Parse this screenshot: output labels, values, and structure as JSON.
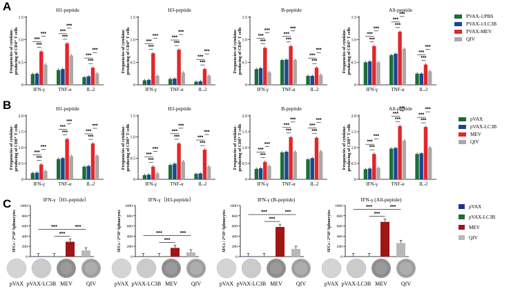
{
  "panels": {
    "A": {
      "letter": "A",
      "ylabel": [
        "Frequencies of cytokine-",
        "producing of CD4⁺ T cells"
      ],
      "legend": [
        "PVAX-1/PBS",
        "PVAX-1/LC3B",
        "PVAX-MEV",
        "QIV"
      ],
      "colors": [
        "#1a6e3a",
        "#1f4590",
        "#e3262a",
        "#a8a8a8"
      ]
    },
    "B": {
      "letter": "B",
      "ylabel": [
        "Frequencies of cytokine-",
        "producing of CD8⁺ T cells"
      ],
      "legend": [
        "pVAX",
        "pVAX-LC3B",
        "MEV",
        "QIV"
      ],
      "colors": [
        "#1a6e3a",
        "#1f4590",
        "#e3262a",
        "#a8a8a8"
      ]
    },
    "C": {
      "letter": "C",
      "ylabel": "SFCs / 2*10⁵ Splenocytes",
      "legend": [
        "pVAX",
        "pVAX-LC3B",
        "MEV",
        "QIV"
      ],
      "colors": [
        "#1f2f8f",
        "#1a6e3a",
        "#a01515",
        "#b8b8b8"
      ],
      "xlabels": [
        "pVAX",
        "pVAX-LC3B",
        "MEV",
        "QIV"
      ]
    }
  },
  "sig": "***",
  "chart_data": [
    {
      "type": "bar",
      "panel": "A",
      "title": "H1-peptide",
      "categories": [
        "IFN-γ",
        "TNF-α",
        "IL-2"
      ],
      "ylim": [
        0,
        1.5
      ],
      "yticks": [
        0,
        0.5,
        1.0,
        1.5
      ],
      "series": [
        {
          "name": "PVAX-1/PBS",
          "values": [
            0.24,
            0.33,
            0.17
          ]
        },
        {
          "name": "PVAX-1/LC3B",
          "values": [
            0.25,
            0.35,
            0.19
          ]
        },
        {
          "name": "PVAX-MEV",
          "values": [
            0.74,
            0.92,
            0.38
          ]
        },
        {
          "name": "QIV",
          "values": [
            0.45,
            0.65,
            0.25
          ]
        }
      ]
    },
    {
      "type": "bar",
      "panel": "A",
      "title": "H3-peptide",
      "categories": [
        "IFN-γ",
        "TNF-α",
        "IL-2"
      ],
      "ylim": [
        0,
        1.5
      ],
      "yticks": [
        0,
        0.5,
        1.0,
        1.5
      ],
      "series": [
        {
          "name": "PVAX-1/PBS",
          "values": [
            0.1,
            0.13,
            0.07
          ]
        },
        {
          "name": "PVAX-1/LC3B",
          "values": [
            0.11,
            0.14,
            0.08
          ]
        },
        {
          "name": "PVAX-MEV",
          "values": [
            0.7,
            0.78,
            0.35
          ]
        },
        {
          "name": "QIV",
          "values": [
            0.2,
            0.27,
            0.2
          ]
        }
      ]
    },
    {
      "type": "bar",
      "panel": "A",
      "title": "B-peptide",
      "categories": [
        "IFN-γ",
        "TNF-α",
        "IL-2"
      ],
      "ylim": [
        0,
        1.5
      ],
      "yticks": [
        0,
        0.5,
        1.0,
        1.5
      ],
      "series": [
        {
          "name": "PVAX-1/PBS",
          "values": [
            0.35,
            0.55,
            0.2
          ]
        },
        {
          "name": "PVAX-1/LC3B",
          "values": [
            0.37,
            0.56,
            0.2
          ]
        },
        {
          "name": "PVAX-MEV",
          "values": [
            0.82,
            0.86,
            0.38
          ]
        },
        {
          "name": "QIV",
          "values": [
            0.28,
            0.55,
            0.22
          ]
        }
      ]
    },
    {
      "type": "bar",
      "panel": "A",
      "title": "All-peptide",
      "categories": [
        "IFN-γ",
        "TNF-α",
        "IL-2"
      ],
      "ylim": [
        0,
        1.5
      ],
      "yticks": [
        0,
        0.5,
        1.0,
        1.5
      ],
      "series": [
        {
          "name": "PVAX-1/PBS",
          "values": [
            0.5,
            0.66,
            0.25
          ]
        },
        {
          "name": "PVAX-1/LC3B",
          "values": [
            0.52,
            0.69,
            0.25
          ]
        },
        {
          "name": "PVAX-MEV",
          "values": [
            0.86,
            1.18,
            0.45
          ]
        },
        {
          "name": "QIV",
          "values": [
            0.5,
            0.8,
            0.3
          ]
        }
      ]
    },
    {
      "type": "bar",
      "panel": "B",
      "title": "H1-peptide",
      "categories": [
        "IFN-γ",
        "TNF-α",
        "IL-2"
      ],
      "ylim": [
        0,
        2.0
      ],
      "yticks": [
        0,
        0.5,
        1.0,
        1.5,
        2.0
      ],
      "series": [
        {
          "name": "pVAX",
          "values": [
            0.2,
            0.64,
            0.4
          ]
        },
        {
          "name": "pVAX-LC3B",
          "values": [
            0.21,
            0.67,
            0.42
          ]
        },
        {
          "name": "MEV",
          "values": [
            0.47,
            1.27,
            1.13
          ]
        },
        {
          "name": "QIV",
          "values": [
            0.26,
            0.73,
            0.74
          ]
        }
      ]
    },
    {
      "type": "bar",
      "panel": "B",
      "title": "H3-peptide",
      "categories": [
        "IFN-γ",
        "TNF-α",
        "IL-2"
      ],
      "ylim": [
        0,
        1.5
      ],
      "yticks": [
        0,
        0.5,
        1.0,
        1.5
      ],
      "series": [
        {
          "name": "pVAX",
          "values": [
            0.1,
            0.34,
            0.13
          ]
        },
        {
          "name": "pVAX-LC3B",
          "values": [
            0.11,
            0.37,
            0.14
          ]
        },
        {
          "name": "MEV",
          "values": [
            0.3,
            0.85,
            0.7
          ]
        },
        {
          "name": "QIV",
          "values": [
            0.14,
            0.42,
            0.3
          ]
        }
      ]
    },
    {
      "type": "bar",
      "panel": "B",
      "title": "B-peptide",
      "categories": [
        "IFN-γ",
        "TNF-α",
        "IL-2"
      ],
      "ylim": [
        0,
        2.0
      ],
      "yticks": [
        0,
        0.5,
        1.0,
        1.5,
        2.0
      ],
      "series": [
        {
          "name": "pVAX",
          "values": [
            0.33,
            0.85,
            0.63
          ]
        },
        {
          "name": "pVAX-LC3B",
          "values": [
            0.35,
            0.87,
            0.67
          ]
        },
        {
          "name": "MEV",
          "values": [
            0.55,
            1.33,
            1.31
          ]
        },
        {
          "name": "QIV",
          "values": [
            0.42,
            0.87,
            0.88
          ]
        }
      ]
    },
    {
      "type": "bar",
      "panel": "B",
      "title": "All-peptide",
      "categories": [
        "IFN-γ",
        "TNF-α",
        "IL-2"
      ],
      "ylim": [
        0,
        2.0
      ],
      "yticks": [
        0,
        0.5,
        1.0,
        1.5,
        2.0
      ],
      "series": [
        {
          "name": "pVAX",
          "values": [
            0.32,
            0.97,
            0.8
          ]
        },
        {
          "name": "pVAX-LC3B",
          "values": [
            0.34,
            0.99,
            0.82
          ]
        },
        {
          "name": "MEV",
          "values": [
            0.8,
            1.68,
            1.65
          ]
        },
        {
          "name": "QIV",
          "values": [
            0.36,
            1.22,
            1.0
          ]
        }
      ]
    },
    {
      "type": "bar",
      "panel": "C",
      "title": "IFN-γ（H1-peptide）",
      "categories": [
        "pVAX",
        "pVAX-LC3B",
        "MEV",
        "QIV"
      ],
      "ylim": [
        0,
        1000
      ],
      "yticks": [
        0,
        200,
        400,
        600,
        800,
        1000
      ],
      "values": [
        5,
        6,
        290,
        120
      ]
    },
    {
      "type": "bar",
      "panel": "C",
      "title": "IFN-γ（H3-peptide）",
      "categories": [
        "pVAX",
        "pVAX-LC3B",
        "MEV",
        "QIV"
      ],
      "ylim": [
        0,
        1000
      ],
      "yticks": [
        0,
        200,
        400,
        600,
        800,
        1000
      ],
      "values": [
        5,
        6,
        170,
        82
      ]
    },
    {
      "type": "bar",
      "panel": "C",
      "title": "IFN-γ (B-peptide)",
      "categories": [
        "pVAX",
        "pVAX-LC3B",
        "MEV",
        "QIV"
      ],
      "ylim": [
        0,
        1000
      ],
      "yticks": [
        0,
        200,
        400,
        600,
        800,
        1000
      ],
      "values": [
        5,
        6,
        580,
        150
      ]
    },
    {
      "type": "bar",
      "panel": "C",
      "title": "IFN-γ (All-peptide)",
      "categories": [
        "pVAX",
        "pVAX-LC3B",
        "MEV",
        "QIV"
      ],
      "ylim": [
        0,
        1000
      ],
      "yticks": [
        0,
        200,
        400,
        600,
        800,
        1000
      ],
      "values": [
        6,
        7,
        680,
        265
      ]
    }
  ]
}
